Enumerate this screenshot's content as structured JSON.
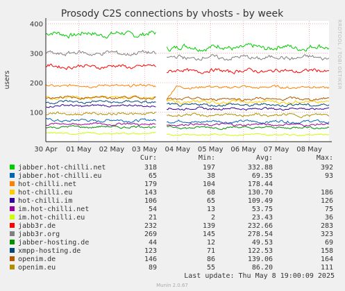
{
  "chart_data": {
    "type": "line",
    "title": "Prosody C2S connections by vhosts - by week",
    "ylabel": "users",
    "side_text": "RRDTOOL / TOBI OETIKER",
    "ylim": [
      0,
      410
    ],
    "yticks": [
      100,
      200,
      300,
      400
    ],
    "x_range_days": [
      0,
      8.6
    ],
    "x_ticks": [
      {
        "label": "30 Apr",
        "day": 0
      },
      {
        "label": "01 May",
        "day": 1
      },
      {
        "label": "02 May",
        "day": 2
      },
      {
        "label": "03 May",
        "day": 3
      },
      {
        "label": "04 May",
        "day": 4
      },
      {
        "label": "05 May",
        "day": 5
      },
      {
        "label": "06 May",
        "day": 6
      },
      {
        "label": "07 May",
        "day": 7
      },
      {
        "label": "08 May",
        "day": 8
      }
    ],
    "gap_days": [
      3.35,
      3.65
    ],
    "legend_headers": {
      "cur": "Cur:",
      "min": "Min:",
      "avg": "Avg:",
      "max": "Max:"
    },
    "series": [
      {
        "name": "jabber.hot-chilli.net",
        "color": "#00cc00",
        "cur": "318",
        "min": "197",
        "avg": "332.88",
        "max": "392",
        "before": 365,
        "after": 320,
        "jitter": 10
      },
      {
        "name": "jabber.hot-chilli.eu",
        "color": "#0066b3",
        "cur": "65",
        "min": "38",
        "avg": "69.35",
        "max": "93",
        "before": 72,
        "after": 68,
        "jitter": 5
      },
      {
        "name": "hot-chilli.net",
        "color": "#ff8000",
        "cur": "179",
        "min": "104",
        "avg": "178.44",
        "after_start": 140,
        "before": 190,
        "after": 185,
        "jitter": 5
      },
      {
        "name": "hot-chilli.eu",
        "color": "#ffcc00",
        "cur": "143",
        "min": "68",
        "avg": "130.70",
        "max": "186",
        "before": 150,
        "after": 135,
        "jitter": 6
      },
      {
        "name": "hot-chilli.im",
        "color": "#330099",
        "cur": "106",
        "min": "65",
        "avg": "109.49",
        "max": "126",
        "before": 122,
        "after": 112,
        "jitter": 4
      },
      {
        "name": "im.hot-chilli.net",
        "color": "#990099",
        "cur": "54",
        "min": "13",
        "avg": "53.75",
        "max": "75",
        "before": 60,
        "after": 58,
        "jitter": 4
      },
      {
        "name": "im.hot-chilli.eu",
        "color": "#ccff00",
        "cur": "21",
        "min": "2",
        "avg": "23.43",
        "max": "36",
        "before": 28,
        "after": 24,
        "jitter": 3
      },
      {
        "name": "jabb3r.de",
        "color": "#ff0000",
        "cur": "232",
        "min": "139",
        "avg": "232.66",
        "max": "283",
        "before": 255,
        "after": 240,
        "jitter": 7
      },
      {
        "name": "jabb3r.org",
        "color": "#808080",
        "cur": "269",
        "min": "145",
        "avg": "278.54",
        "max": "323",
        "before": 300,
        "after": 285,
        "jitter": 8
      },
      {
        "name": "jabber-hosting.de",
        "color": "#008f00",
        "cur": "44",
        "min": "12",
        "avg": "49.53",
        "max": "69",
        "before": 50,
        "after": 48,
        "jitter": 4
      },
      {
        "name": "xmpp-hosting.de",
        "color": "#00487d",
        "cur": "123",
        "min": "71",
        "avg": "122.53",
        "max": "158",
        "before": 135,
        "after": 125,
        "jitter": 5
      },
      {
        "name": "openim.de",
        "color": "#b35a00",
        "cur": "146",
        "min": "86",
        "avg": "139.06",
        "max": "164",
        "before": 150,
        "after": 145,
        "jitter": 5
      },
      {
        "name": "openim.eu",
        "color": "#b38f00",
        "cur": "89",
        "min": "55",
        "avg": "86.20",
        "max": "111",
        "before": 95,
        "after": 90,
        "jitter": 5
      }
    ]
  },
  "last_update": "Last update: Thu May  8 19:00:09 2025",
  "footer": "Munin 2.0.67"
}
